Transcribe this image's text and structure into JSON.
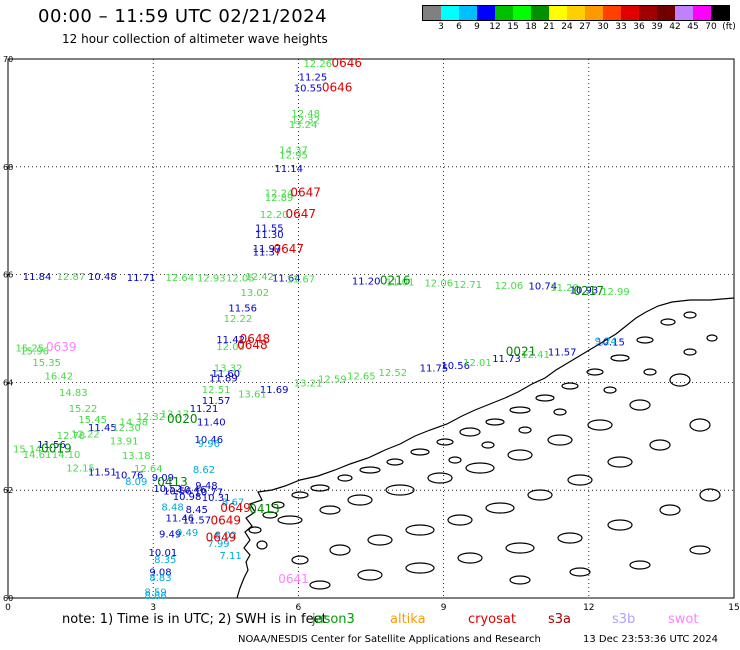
{
  "header": {
    "title": "00:00 – 11:59 UTC 02/21/2024",
    "subtitle": "12 hour collection of altimeter wave heights"
  },
  "legend": {
    "colors": [
      "#808080",
      "#00ffff",
      "#00bfff",
      "#0000ff",
      "#00c000",
      "#00ff00",
      "#009000",
      "#ffff00",
      "#ffd000",
      "#ff9900",
      "#ff4000",
      "#e00000",
      "#a00000",
      "#700000",
      "#c080ff",
      "#ff00ff",
      "#000000"
    ],
    "labels": [
      "3",
      "6",
      "9",
      "12",
      "15",
      "18",
      "21",
      "24",
      "27",
      "30",
      "33",
      "36",
      "39",
      "42",
      "45",
      "70",
      "(ft)"
    ]
  },
  "axes": {
    "lon_ticks": [
      "0",
      "3",
      "6",
      "9",
      "12",
      "15"
    ],
    "lat_ticks": [
      "70",
      "68",
      "66",
      "64",
      "62",
      "60"
    ]
  },
  "note": {
    "text": "note:  1) Time is in UTC;  2) SWH is in feet",
    "satellites": [
      {
        "name": "jason3",
        "color": "#00a000"
      },
      {
        "name": "altika",
        "color": "#ff9900"
      },
      {
        "name": "cryosat",
        "color": "#dd0000"
      },
      {
        "name": "s3a",
        "color": "#aa0000"
      },
      {
        "name": "s3b",
        "color": "#b0a0ff"
      },
      {
        "name": "swot",
        "color": "#ff80ff"
      }
    ]
  },
  "footer": {
    "credit": "NOAA/NESDIS Center for Satellite Applications and Research",
    "date": "13 Dec 23:53:36 UTC 2024"
  },
  "observations": [
    {
      "lon": 6.4,
      "lat": 69.85,
      "text": "12.26",
      "color": "#44dd44"
    },
    {
      "lon": 6.3,
      "lat": 69.6,
      "text": "11.25",
      "color": "#0000cc"
    },
    {
      "lon": 6.2,
      "lat": 69.4,
      "text": "10.55",
      "color": "#0000cc"
    },
    {
      "lon": 6.15,
      "lat": 68.92,
      "text": "12.48",
      "color": "#44dd44"
    },
    {
      "lon": 6.15,
      "lat": 68.8,
      "text": "12.32",
      "color": "#44dd44"
    },
    {
      "lon": 6.1,
      "lat": 68.72,
      "text": "13.24",
      "color": "#44dd44"
    },
    {
      "lon": 5.9,
      "lat": 68.25,
      "text": "14.37",
      "color": "#44dd44"
    },
    {
      "lon": 5.9,
      "lat": 68.15,
      "text": "12.95",
      "color": "#44dd44"
    },
    {
      "lon": 5.8,
      "lat": 67.9,
      "text": "11.14",
      "color": "#0000cc"
    },
    {
      "lon": 5.6,
      "lat": 67.45,
      "text": "12.24",
      "color": "#44dd44"
    },
    {
      "lon": 5.6,
      "lat": 67.37,
      "text": "12.89",
      "color": "#44dd44"
    },
    {
      "lon": 5.5,
      "lat": 67.05,
      "text": "12.20",
      "color": "#44dd44"
    },
    {
      "lon": 5.4,
      "lat": 66.8,
      "text": "11.55",
      "color": "#0000cc"
    },
    {
      "lon": 5.4,
      "lat": 66.68,
      "text": "11.30",
      "color": "#0000cc"
    },
    {
      "lon": 5.35,
      "lat": 66.42,
      "text": "11.97",
      "color": "#0000cc"
    },
    {
      "lon": 5.35,
      "lat": 66.35,
      "text": "11.37",
      "color": "#0000cc"
    },
    {
      "lon": 0.6,
      "lat": 65.9,
      "text": "11.84",
      "color": "#0000cc"
    },
    {
      "lon": 1.3,
      "lat": 65.9,
      "text": "12.87",
      "color": "#44dd44"
    },
    {
      "lon": 1.95,
      "lat": 65.9,
      "text": "10.48",
      "color": "#0000cc"
    },
    {
      "lon": 2.75,
      "lat": 65.88,
      "text": "11.71",
      "color": "#0000cc"
    },
    {
      "lon": 3.55,
      "lat": 65.88,
      "text": "12.64",
      "color": "#44dd44"
    },
    {
      "lon": 4.2,
      "lat": 65.87,
      "text": "12.93",
      "color": "#44dd44"
    },
    {
      "lon": 4.8,
      "lat": 65.87,
      "text": "12.05",
      "color": "#44dd44"
    },
    {
      "lon": 5.2,
      "lat": 65.9,
      "text": "12.42",
      "color": "#44dd44"
    },
    {
      "lon": 5.75,
      "lat": 65.87,
      "text": "11.64",
      "color": "#0000cc"
    },
    {
      "lon": 6.05,
      "lat": 65.85,
      "text": "11.67",
      "color": "#44dd44"
    },
    {
      "lon": 7.4,
      "lat": 65.82,
      "text": "11.20",
      "color": "#0000cc"
    },
    {
      "lon": 8.1,
      "lat": 65.8,
      "text": "11.01",
      "color": "#44dd44"
    },
    {
      "lon": 8.9,
      "lat": 65.78,
      "text": "12.06",
      "color": "#44dd44"
    },
    {
      "lon": 9.5,
      "lat": 65.75,
      "text": "12.71",
      "color": "#44dd44"
    },
    {
      "lon": 10.35,
      "lat": 65.73,
      "text": "12.06",
      "color": "#44dd44"
    },
    {
      "lon": 11.05,
      "lat": 65.72,
      "text": "10.74",
      "color": "#0000cc"
    },
    {
      "lon": 11.5,
      "lat": 65.7,
      "text": "11.20",
      "color": "#44dd44"
    },
    {
      "lon": 11.9,
      "lat": 65.65,
      "text": "10.93",
      "color": "#0000cc"
    },
    {
      "lon": 12.55,
      "lat": 65.62,
      "text": "12.99",
      "color": "#44dd44"
    },
    {
      "lon": 5.1,
      "lat": 65.6,
      "text": "13.02",
      "color": "#44dd44"
    },
    {
      "lon": 4.85,
      "lat": 65.32,
      "text": "11.56",
      "color": "#0000cc"
    },
    {
      "lon": 4.75,
      "lat": 65.12,
      "text": "12.22",
      "color": "#44dd44"
    },
    {
      "lon": 4.6,
      "lat": 64.73,
      "text": "11.42",
      "color": "#0000cc"
    },
    {
      "lon": 4.6,
      "lat": 64.6,
      "text": "12.03",
      "color": "#44dd44"
    },
    {
      "lon": 4.55,
      "lat": 64.2,
      "text": "13.32",
      "color": "#44dd44"
    },
    {
      "lon": 4.5,
      "lat": 64.1,
      "text": "11.60",
      "color": "#0000cc"
    },
    {
      "lon": 4.45,
      "lat": 64.02,
      "text": "11.89",
      "color": "#0000cc"
    },
    {
      "lon": 4.3,
      "lat": 63.8,
      "text": "12.51",
      "color": "#44dd44"
    },
    {
      "lon": 5.5,
      "lat": 63.8,
      "text": "11.69",
      "color": "#0000cc"
    },
    {
      "lon": 5.05,
      "lat": 63.72,
      "text": "13.61",
      "color": "#44dd44"
    },
    {
      "lon": 4.3,
      "lat": 63.6,
      "text": "11.57",
      "color": "#0000cc"
    },
    {
      "lon": 6.2,
      "lat": 63.92,
      "text": "13.21",
      "color": "#44dd44"
    },
    {
      "lon": 6.7,
      "lat": 64.0,
      "text": "12.59",
      "color": "#44dd44"
    },
    {
      "lon": 7.3,
      "lat": 64.05,
      "text": "12.65",
      "color": "#44dd44"
    },
    {
      "lon": 7.95,
      "lat": 64.12,
      "text": "12.52",
      "color": "#44dd44"
    },
    {
      "lon": 8.8,
      "lat": 64.2,
      "text": "11.75",
      "color": "#0000cc"
    },
    {
      "lon": 9.25,
      "lat": 64.25,
      "text": "10.56",
      "color": "#0000cc"
    },
    {
      "lon": 9.7,
      "lat": 64.3,
      "text": "12.01",
      "color": "#44dd44"
    },
    {
      "lon": 10.3,
      "lat": 64.38,
      "text": "11.73",
      "color": "#0000cc"
    },
    {
      "lon": 10.9,
      "lat": 64.45,
      "text": "12.41",
      "color": "#44dd44"
    },
    {
      "lon": 11.45,
      "lat": 64.5,
      "text": "11.57",
      "color": "#0000cc"
    },
    {
      "lon": 12.45,
      "lat": 64.68,
      "text": "10.15",
      "color": "#0000cc"
    },
    {
      "lon": 12.35,
      "lat": 64.7,
      "text": "9.24",
      "color": "#00aadd"
    },
    {
      "lon": 0.45,
      "lat": 64.57,
      "text": "15.25",
      "color": "#44dd44"
    },
    {
      "lon": 0.55,
      "lat": 64.52,
      "text": "15.96",
      "color": "#44dd44"
    },
    {
      "lon": 0.8,
      "lat": 64.3,
      "text": "15.35",
      "color": "#44dd44"
    },
    {
      "lon": 1.05,
      "lat": 64.05,
      "text": "16.42",
      "color": "#44dd44"
    },
    {
      "lon": 1.35,
      "lat": 63.75,
      "text": "14.83",
      "color": "#44dd44"
    },
    {
      "lon": 1.55,
      "lat": 63.45,
      "text": "15.22",
      "color": "#44dd44"
    },
    {
      "lon": 1.75,
      "lat": 63.25,
      "text": "15.45",
      "color": "#44dd44"
    },
    {
      "lon": 2.6,
      "lat": 63.2,
      "text": "14.38",
      "color": "#44dd44"
    },
    {
      "lon": 2.95,
      "lat": 63.3,
      "text": "12.32",
      "color": "#44dd44"
    },
    {
      "lon": 3.45,
      "lat": 63.35,
      "text": "13.17",
      "color": "#44dd44"
    },
    {
      "lon": 4.05,
      "lat": 63.45,
      "text": "11.21",
      "color": "#0000cc"
    },
    {
      "lon": 4.2,
      "lat": 63.2,
      "text": "11.40",
      "color": "#0000cc"
    },
    {
      "lon": 1.95,
      "lat": 63.1,
      "text": "11.45",
      "color": "#0000cc"
    },
    {
      "lon": 2.45,
      "lat": 63.1,
      "text": "12.30",
      "color": "#44dd44"
    },
    {
      "lon": 1.3,
      "lat": 62.95,
      "text": "12.78",
      "color": "#44dd44"
    },
    {
      "lon": 1.6,
      "lat": 62.98,
      "text": "12.22",
      "color": "#44dd44"
    },
    {
      "lon": 2.4,
      "lat": 62.85,
      "text": "13.91",
      "color": "#44dd44"
    },
    {
      "lon": 4.15,
      "lat": 62.88,
      "text": "10.46",
      "color": "#0000cc"
    },
    {
      "lon": 4.15,
      "lat": 62.8,
      "text": "9.96",
      "color": "#00aadd"
    },
    {
      "lon": 0.9,
      "lat": 62.78,
      "text": "11.56",
      "color": "#0000cc"
    },
    {
      "lon": 0.4,
      "lat": 62.7,
      "text": "15.14",
      "color": "#44dd44"
    },
    {
      "lon": 0.6,
      "lat": 62.6,
      "text": "14.61",
      "color": "#44dd44"
    },
    {
      "lon": 1.2,
      "lat": 62.6,
      "text": "14.10",
      "color": "#44dd44"
    },
    {
      "lon": 2.65,
      "lat": 62.58,
      "text": "13.18",
      "color": "#44dd44"
    },
    {
      "lon": 1.5,
      "lat": 62.35,
      "text": "12.15",
      "color": "#44dd44"
    },
    {
      "lon": 2.9,
      "lat": 62.34,
      "text": "12.64",
      "color": "#44dd44"
    },
    {
      "lon": 4.05,
      "lat": 62.32,
      "text": "8.62",
      "color": "#00aadd"
    },
    {
      "lon": 1.95,
      "lat": 62.27,
      "text": "11.51",
      "color": "#0000cc"
    },
    {
      "lon": 2.5,
      "lat": 62.22,
      "text": "10.76",
      "color": "#0000cc"
    },
    {
      "lon": 3.2,
      "lat": 62.17,
      "text": "9.09",
      "color": "#0000cc"
    },
    {
      "lon": 2.65,
      "lat": 62.1,
      "text": "8.09",
      "color": "#00aadd"
    },
    {
      "lon": 4.1,
      "lat": 62.02,
      "text": "9.48",
      "color": "#0000cc"
    },
    {
      "lon": 3.3,
      "lat": 61.97,
      "text": "10.52",
      "color": "#0000cc"
    },
    {
      "lon": 3.8,
      "lat": 61.95,
      "text": "10.46",
      "color": "#0000cc"
    },
    {
      "lon": 3.5,
      "lat": 61.92,
      "text": "10.56",
      "color": "#0000cc"
    },
    {
      "lon": 4.15,
      "lat": 61.9,
      "text": "10.77",
      "color": "#0000cc"
    },
    {
      "lon": 3.7,
      "lat": 61.82,
      "text": "10.98",
      "color": "#0000cc"
    },
    {
      "lon": 4.3,
      "lat": 61.8,
      "text": "10.31",
      "color": "#0000cc"
    },
    {
      "lon": 4.65,
      "lat": 61.72,
      "text": "8.67",
      "color": "#00aadd"
    },
    {
      "lon": 3.4,
      "lat": 61.62,
      "text": "8.48",
      "color": "#00aadd"
    },
    {
      "lon": 3.9,
      "lat": 61.58,
      "text": "8.45",
      "color": "#0000cc"
    },
    {
      "lon": 3.55,
      "lat": 61.42,
      "text": "11.46",
      "color": "#0000cc"
    },
    {
      "lon": 3.9,
      "lat": 61.38,
      "text": "11.57",
      "color": "#0000cc"
    },
    {
      "lon": 3.35,
      "lat": 61.12,
      "text": "9.49",
      "color": "#0000cc"
    },
    {
      "lon": 3.7,
      "lat": 61.15,
      "text": "9.49",
      "color": "#00aadd"
    },
    {
      "lon": 4.5,
      "lat": 61.1,
      "text": "8.02",
      "color": "#00aadd"
    },
    {
      "lon": 4.35,
      "lat": 60.95,
      "text": "7.99",
      "color": "#00aadd"
    },
    {
      "lon": 3.2,
      "lat": 60.78,
      "text": "10.01",
      "color": "#0000cc"
    },
    {
      "lon": 3.25,
      "lat": 60.65,
      "text": "8.35",
      "color": "#00aadd"
    },
    {
      "lon": 4.6,
      "lat": 60.72,
      "text": "7.11",
      "color": "#00aadd"
    },
    {
      "lon": 3.15,
      "lat": 60.42,
      "text": "9.08",
      "color": "#0000cc"
    },
    {
      "lon": 3.15,
      "lat": 60.32,
      "text": "8.83",
      "color": "#00aadd"
    },
    {
      "lon": 3.05,
      "lat": 60.05,
      "text": "8.59",
      "color": "#00aadd"
    },
    {
      "lon": 3.05,
      "lat": 59.98,
      "text": "8.86",
      "color": "#00aadd"
    }
  ],
  "pass_labels": [
    {
      "lon": 7.0,
      "lat": 69.85,
      "text": "0646",
      "color": "#dd0000"
    },
    {
      "lon": 6.8,
      "lat": 69.4,
      "text": "0646",
      "color": "#dd0000"
    },
    {
      "lon": 6.15,
      "lat": 67.45,
      "text": "0647",
      "color": "#dd0000"
    },
    {
      "lon": 6.05,
      "lat": 67.05,
      "text": "0647",
      "color": "#dd0000"
    },
    {
      "lon": 5.8,
      "lat": 66.4,
      "text": "0647",
      "color": "#dd0000"
    },
    {
      "lon": 8.0,
      "lat": 65.82,
      "text": "0216",
      "color": "#008800"
    },
    {
      "lon": 12.0,
      "lat": 65.62,
      "text": "0217",
      "color": "#008800"
    },
    {
      "lon": 5.1,
      "lat": 64.73,
      "text": "0648",
      "color": "#dd0000"
    },
    {
      "lon": 5.05,
      "lat": 64.62,
      "text": "0648",
      "color": "#dd0000"
    },
    {
      "lon": 1.1,
      "lat": 64.58,
      "text": "0639",
      "color": "#ff80ff"
    },
    {
      "lon": 10.6,
      "lat": 64.5,
      "text": "0021",
      "color": "#008800"
    },
    {
      "lon": 3.6,
      "lat": 63.25,
      "text": "0020",
      "color": "#008800"
    },
    {
      "lon": 1.0,
      "lat": 62.7,
      "text": "0019",
      "color": "#008800"
    },
    {
      "lon": 3.4,
      "lat": 62.08,
      "text": "0413",
      "color": "#008800"
    },
    {
      "lon": 5.3,
      "lat": 61.58,
      "text": "0413",
      "color": "#008800"
    },
    {
      "lon": 4.7,
      "lat": 61.6,
      "text": "0649",
      "color": "#dd0000"
    },
    {
      "lon": 4.5,
      "lat": 61.36,
      "text": "0649",
      "color": "#dd0000"
    },
    {
      "lon": 4.4,
      "lat": 61.05,
      "text": "0649",
      "color": "#dd0000"
    },
    {
      "lon": 5.9,
      "lat": 60.28,
      "text": "0641",
      "color": "#ff80ff"
    }
  ]
}
